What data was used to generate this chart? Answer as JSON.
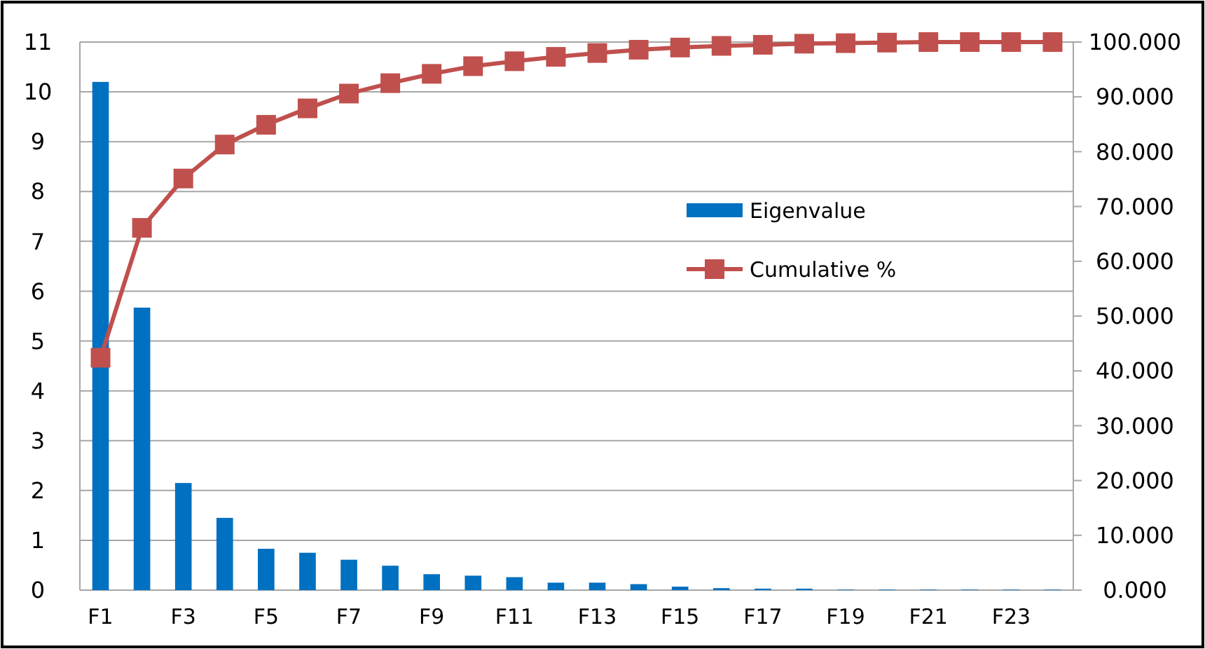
{
  "chart_data": {
    "type": "bar",
    "categories": [
      "F1",
      null,
      "F3",
      null,
      "F5",
      null,
      "F7",
      null,
      "F9",
      null,
      "F11",
      null,
      "F13",
      null,
      "F15",
      null,
      "F17",
      null,
      "F19",
      null,
      "F21",
      null,
      "F23",
      null
    ],
    "series": [
      {
        "name": "Eigenvalue",
        "color": "#0070c0",
        "values": [
          10.2,
          5.67,
          2.15,
          1.45,
          0.83,
          0.75,
          0.61,
          0.49,
          0.32,
          0.29,
          0.26,
          0.15,
          0.15,
          0.12,
          0.07,
          0.04,
          0.03,
          0.03,
          0.01,
          0.01,
          0.01,
          0.01,
          0.01,
          0.01
        ]
      },
      {
        "name": "Cumulative %",
        "type": "line",
        "axis": "y2",
        "color": "#c0504d",
        "marker": "square",
        "values": [
          42.4,
          66.1,
          75.1,
          81.3,
          84.9,
          87.9,
          90.6,
          92.5,
          94.2,
          95.6,
          96.5,
          97.3,
          98.0,
          98.6,
          99.0,
          99.3,
          99.5,
          99.7,
          99.8,
          99.9,
          100,
          100,
          100,
          100
        ]
      }
    ],
    "ylim": [
      0,
      11
    ],
    "yticks": [
      0,
      1,
      2,
      3,
      4,
      5,
      6,
      7,
      8,
      9,
      10,
      11
    ],
    "y2lim": [
      0,
      100
    ],
    "y2ticks": [
      {
        "value": 0,
        "label": "0.000"
      },
      {
        "value": 10,
        "label": "10.000"
      },
      {
        "value": 20,
        "label": "20.000"
      },
      {
        "value": 30,
        "label": "30.000"
      },
      {
        "value": 40,
        "label": "40.000"
      },
      {
        "value": 50,
        "label": "50.000"
      },
      {
        "value": 60,
        "label": "60.000"
      },
      {
        "value": 70,
        "label": "70.000"
      },
      {
        "value": 80,
        "label": "80.000"
      },
      {
        "value": 90,
        "label": "90.000"
      },
      {
        "value": 100,
        "label": "100.000"
      }
    ],
    "grid": "y",
    "legend": "right"
  }
}
